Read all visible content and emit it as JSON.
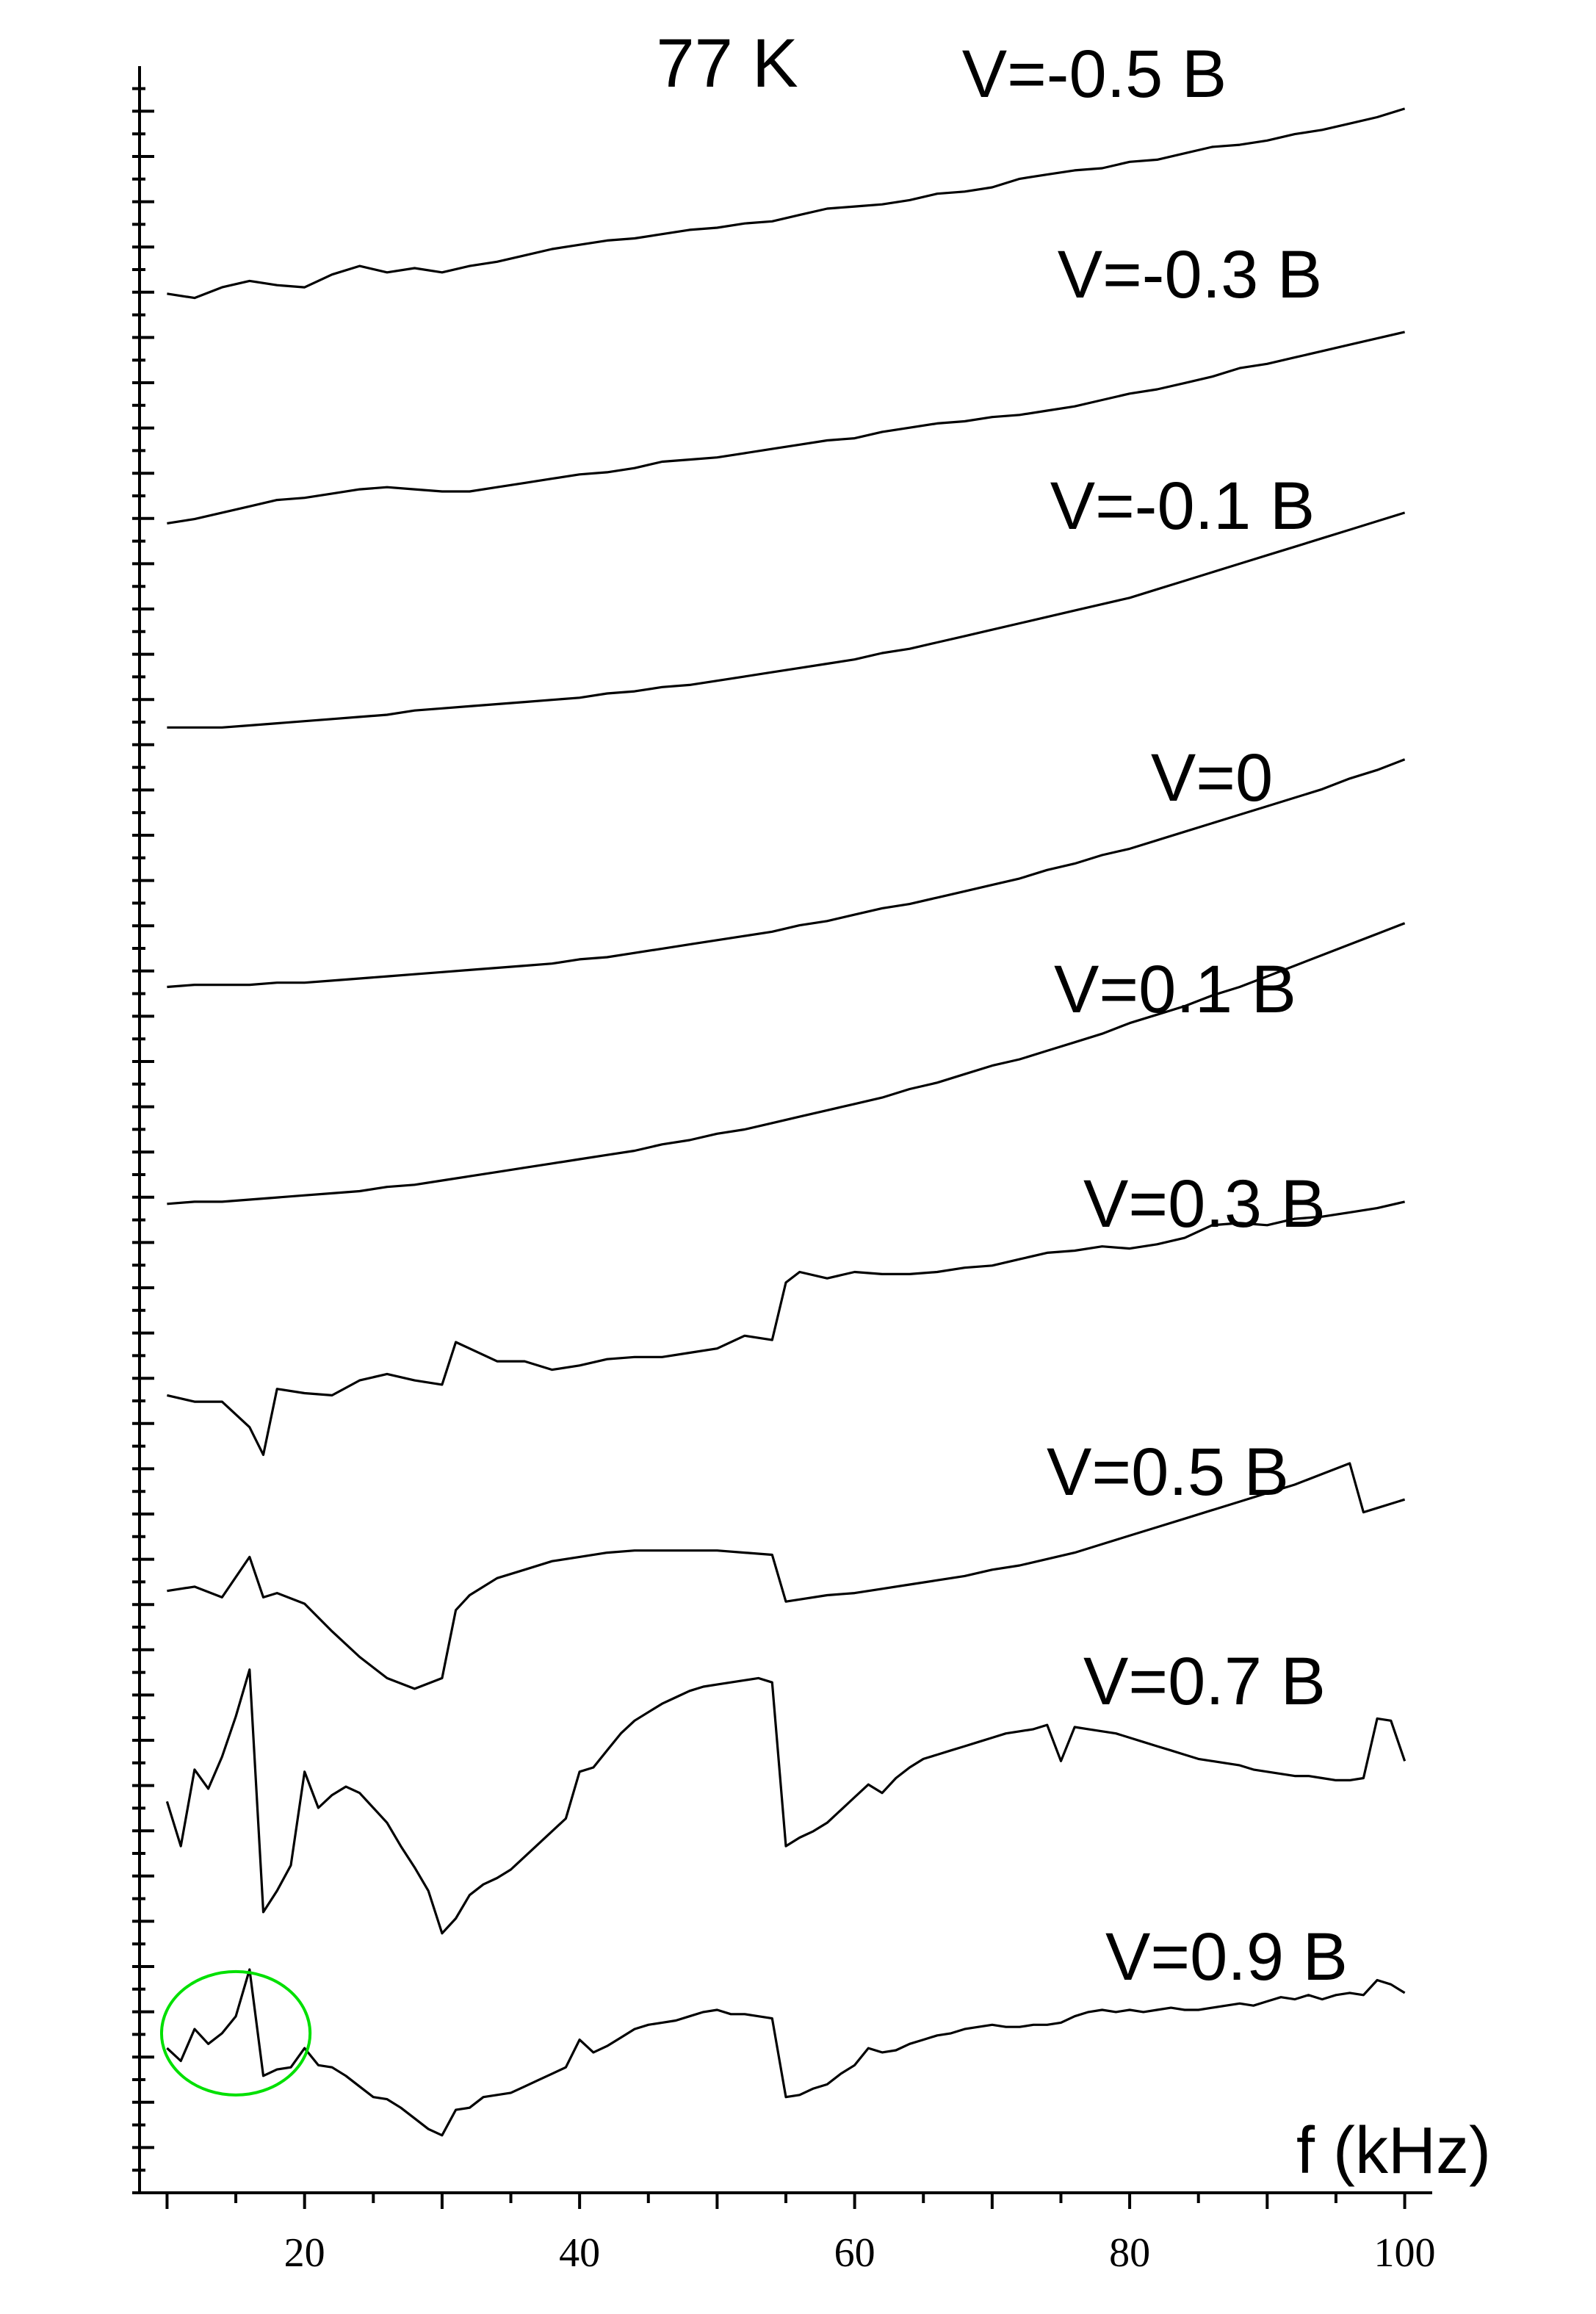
{
  "chart_data": {
    "type": "line",
    "title": "77 K",
    "xlabel": "f (kHz)",
    "ylabel": "",
    "xlim": [
      8,
      102
    ],
    "ylim": [
      0,
      100
    ],
    "x_ticks": [
      20,
      40,
      60,
      80,
      100
    ],
    "y_tick_labels": false,
    "grid": false,
    "legend": "inline labels at right end of each curve",
    "colors": {
      "curve": "#000000",
      "highlight": "#00e000"
    },
    "highlight": {
      "shape": "ellipse",
      "cx": 15,
      "cy": 7.5,
      "rx": 5.4,
      "ry": 2.9
    },
    "series": [
      {
        "name": "V=-0.5 B",
        "x": [
          10,
          12,
          14,
          16,
          18,
          20,
          22,
          24,
          26,
          28,
          30,
          32,
          34,
          36,
          38,
          40,
          42,
          44,
          46,
          48,
          50,
          52,
          54,
          56,
          58,
          60,
          62,
          64,
          66,
          68,
          70,
          72,
          74,
          76,
          78,
          80,
          82,
          84,
          86,
          88,
          90,
          92,
          94,
          96,
          98,
          100
        ],
        "y": [
          89.3,
          89.1,
          89.6,
          89.9,
          89.7,
          89.6,
          90.2,
          90.6,
          90.3,
          90.5,
          90.3,
          90.6,
          90.8,
          91.1,
          91.4,
          91.6,
          91.8,
          91.9,
          92.1,
          92.3,
          92.4,
          92.6,
          92.7,
          93.0,
          93.3,
          93.4,
          93.5,
          93.7,
          94.0,
          94.1,
          94.3,
          94.7,
          94.9,
          95.1,
          95.2,
          95.5,
          95.6,
          95.9,
          96.2,
          96.3,
          96.5,
          96.8,
          97.0,
          97.3,
          97.6,
          98.0
        ]
      },
      {
        "name": "V=-0.3 B",
        "x": [
          10,
          12,
          14,
          16,
          18,
          20,
          22,
          24,
          26,
          28,
          30,
          32,
          34,
          36,
          38,
          40,
          42,
          44,
          46,
          48,
          50,
          52,
          54,
          56,
          58,
          60,
          62,
          64,
          66,
          68,
          70,
          72,
          74,
          76,
          78,
          80,
          82,
          84,
          86,
          88,
          90,
          92,
          94,
          96,
          98,
          100
        ],
        "y": [
          78.5,
          78.7,
          79.0,
          79.3,
          79.6,
          79.7,
          79.9,
          80.1,
          80.2,
          80.1,
          80.0,
          80.0,
          80.2,
          80.4,
          80.6,
          80.8,
          80.9,
          81.1,
          81.4,
          81.5,
          81.6,
          81.8,
          82.0,
          82.2,
          82.4,
          82.5,
          82.8,
          83.0,
          83.2,
          83.3,
          83.5,
          83.6,
          83.8,
          84.0,
          84.3,
          84.6,
          84.8,
          85.1,
          85.4,
          85.8,
          86.0,
          86.3,
          86.6,
          86.9,
          87.2,
          87.5
        ]
      },
      {
        "name": "V=-0.1 B",
        "x": [
          10,
          12,
          14,
          16,
          18,
          20,
          22,
          24,
          26,
          28,
          30,
          32,
          34,
          36,
          38,
          40,
          42,
          44,
          46,
          48,
          50,
          52,
          54,
          56,
          58,
          60,
          62,
          64,
          66,
          68,
          70,
          72,
          74,
          76,
          78,
          80,
          82,
          84,
          86,
          88,
          90,
          92,
          94,
          96,
          98,
          100
        ],
        "y": [
          68.9,
          68.9,
          68.9,
          69.0,
          69.1,
          69.2,
          69.3,
          69.4,
          69.5,
          69.7,
          69.8,
          69.9,
          70.0,
          70.1,
          70.2,
          70.3,
          70.5,
          70.6,
          70.8,
          70.9,
          71.1,
          71.3,
          71.5,
          71.7,
          71.9,
          72.1,
          72.4,
          72.6,
          72.9,
          73.2,
          73.5,
          73.8,
          74.1,
          74.4,
          74.7,
          75.0,
          75.4,
          75.8,
          76.2,
          76.6,
          77.0,
          77.4,
          77.8,
          78.2,
          78.6,
          79.0
        ]
      },
      {
        "name": "V=0",
        "x": [
          10,
          12,
          14,
          16,
          18,
          20,
          22,
          24,
          26,
          28,
          30,
          32,
          34,
          36,
          38,
          40,
          42,
          44,
          46,
          48,
          50,
          52,
          54,
          56,
          58,
          60,
          62,
          64,
          66,
          68,
          70,
          72,
          74,
          76,
          78,
          80,
          82,
          84,
          86,
          88,
          90,
          92,
          94,
          96,
          98,
          100
        ],
        "y": [
          56.7,
          56.8,
          56.8,
          56.8,
          56.9,
          56.9,
          57.0,
          57.1,
          57.2,
          57.3,
          57.4,
          57.5,
          57.6,
          57.7,
          57.8,
          58.0,
          58.1,
          58.3,
          58.5,
          58.7,
          58.9,
          59.1,
          59.3,
          59.6,
          59.8,
          60.1,
          60.4,
          60.6,
          60.9,
          61.2,
          61.5,
          61.8,
          62.2,
          62.5,
          62.9,
          63.2,
          63.6,
          64.0,
          64.4,
          64.8,
          65.2,
          65.6,
          66.0,
          66.5,
          66.9,
          67.4
        ]
      },
      {
        "name": "V=0.1 B",
        "x": [
          10,
          12,
          14,
          16,
          18,
          20,
          22,
          24,
          26,
          28,
          30,
          32,
          34,
          36,
          38,
          40,
          42,
          44,
          46,
          48,
          50,
          52,
          54,
          56,
          58,
          60,
          62,
          64,
          66,
          68,
          70,
          72,
          74,
          76,
          78,
          80,
          82,
          84,
          86,
          88,
          90,
          92,
          94,
          96,
          98,
          100
        ],
        "y": [
          46.5,
          46.6,
          46.6,
          46.7,
          46.8,
          46.9,
          47.0,
          47.1,
          47.3,
          47.4,
          47.6,
          47.8,
          48.0,
          48.2,
          48.4,
          48.6,
          48.8,
          49.0,
          49.3,
          49.5,
          49.8,
          50.0,
          50.3,
          50.6,
          50.9,
          51.2,
          51.5,
          51.9,
          52.2,
          52.6,
          53.0,
          53.3,
          53.7,
          54.1,
          54.5,
          55.0,
          55.4,
          55.8,
          56.3,
          56.7,
          57.2,
          57.7,
          58.2,
          58.7,
          59.2,
          59.7
        ]
      },
      {
        "name": "V=0.3 B",
        "x": [
          10,
          12,
          14,
          16,
          17,
          18,
          20,
          22,
          24,
          26,
          28,
          30,
          31,
          32,
          34,
          36,
          38,
          40,
          42,
          44,
          46,
          48,
          50,
          52,
          54,
          55,
          56,
          58,
          60,
          62,
          64,
          66,
          68,
          70,
          72,
          74,
          76,
          78,
          80,
          82,
          84,
          86,
          88,
          90,
          92,
          94,
          96,
          98,
          100
        ],
        "y": [
          37.5,
          37.2,
          37.2,
          36.0,
          34.7,
          37.8,
          37.6,
          37.5,
          38.2,
          38.5,
          38.2,
          38.0,
          40.0,
          39.7,
          39.1,
          39.1,
          38.7,
          38.9,
          39.2,
          39.3,
          39.3,
          39.5,
          39.7,
          40.3,
          40.1,
          42.8,
          43.3,
          43.0,
          43.3,
          43.2,
          43.2,
          43.3,
          43.5,
          43.6,
          43.9,
          44.2,
          44.3,
          44.5,
          44.4,
          44.6,
          44.9,
          45.5,
          45.6,
          45.5,
          45.8,
          45.9,
          46.1,
          46.3,
          46.6
        ]
      },
      {
        "name": "V=0.5 B",
        "x": [
          10,
          12,
          14,
          16,
          17,
          18,
          20,
          22,
          24,
          26,
          28,
          30,
          31,
          32,
          34,
          36,
          38,
          40,
          42,
          44,
          46,
          48,
          50,
          52,
          54,
          55,
          56,
          58,
          60,
          62,
          64,
          66,
          68,
          70,
          72,
          74,
          76,
          78,
          80,
          82,
          84,
          86,
          88,
          90,
          92,
          94,
          96,
          97,
          98,
          100
        ],
        "y": [
          28.3,
          28.5,
          28.0,
          29.9,
          28.0,
          28.2,
          27.7,
          26.4,
          25.2,
          24.2,
          23.7,
          24.2,
          27.4,
          28.1,
          28.9,
          29.3,
          29.7,
          29.9,
          30.1,
          30.2,
          30.2,
          30.2,
          30.2,
          30.1,
          30.0,
          27.8,
          27.9,
          28.1,
          28.2,
          28.4,
          28.6,
          28.8,
          29.0,
          29.3,
          29.5,
          29.8,
          30.1,
          30.5,
          30.9,
          31.3,
          31.7,
          32.1,
          32.5,
          32.9,
          33.3,
          33.8,
          34.3,
          32.0,
          32.2,
          32.6
        ]
      },
      {
        "name": "V=0.7 B",
        "x": [
          10,
          11,
          12,
          13,
          14,
          15,
          16,
          17,
          18,
          19,
          20,
          21,
          22,
          23,
          24,
          25,
          26,
          27,
          28,
          29,
          30,
          31,
          32,
          33,
          34,
          35,
          36,
          37,
          38,
          39,
          40,
          41,
          42,
          43,
          44,
          45,
          46,
          47,
          48,
          49,
          50,
          51,
          52,
          53,
          54,
          55,
          56,
          57,
          58,
          59,
          60,
          61,
          62,
          63,
          64,
          65,
          66,
          67,
          68,
          69,
          70,
          71,
          72,
          73,
          74,
          75,
          76,
          77,
          78,
          79,
          80,
          81,
          82,
          83,
          84,
          85,
          86,
          87,
          88,
          89,
          90,
          91,
          92,
          93,
          94,
          95,
          96,
          97,
          98,
          99,
          100
        ],
        "y": [
          18.4,
          16.3,
          19.9,
          19.0,
          20.5,
          22.4,
          24.6,
          13.2,
          14.2,
          15.4,
          19.8,
          18.1,
          18.7,
          19.1,
          18.8,
          18.1,
          17.4,
          16.3,
          15.3,
          14.2,
          12.2,
          12.9,
          14.0,
          14.5,
          14.8,
          15.2,
          15.8,
          16.4,
          17.0,
          17.6,
          19.8,
          20.0,
          20.8,
          21.6,
          22.2,
          22.6,
          23.0,
          23.3,
          23.6,
          23.8,
          23.9,
          24.0,
          24.1,
          24.2,
          24.0,
          16.3,
          16.7,
          17.0,
          17.4,
          18.0,
          18.6,
          19.2,
          18.8,
          19.5,
          20.0,
          20.4,
          20.6,
          20.8,
          21.0,
          21.2,
          21.4,
          21.6,
          21.7,
          21.8,
          22.0,
          20.3,
          21.9,
          21.8,
          21.7,
          21.6,
          21.4,
          21.2,
          21.0,
          20.8,
          20.6,
          20.4,
          20.3,
          20.2,
          20.1,
          19.9,
          19.8,
          19.7,
          19.6,
          19.6,
          19.5,
          19.4,
          19.4,
          19.5,
          22.3,
          22.2,
          20.3
        ]
      },
      {
        "name": "V=0.9 B",
        "x": [
          10,
          11,
          12,
          13,
          14,
          15,
          16,
          17,
          18,
          19,
          20,
          21,
          22,
          23,
          24,
          25,
          26,
          27,
          28,
          29,
          30,
          31,
          32,
          33,
          34,
          35,
          36,
          37,
          38,
          39,
          40,
          41,
          42,
          43,
          44,
          45,
          46,
          47,
          48,
          49,
          50,
          51,
          52,
          53,
          54,
          55,
          56,
          57,
          58,
          59,
          60,
          61,
          62,
          63,
          64,
          65,
          66,
          67,
          68,
          69,
          70,
          71,
          72,
          73,
          74,
          75,
          76,
          77,
          78,
          79,
          80,
          81,
          82,
          83,
          84,
          85,
          86,
          87,
          88,
          89,
          90,
          91,
          92,
          93,
          94,
          95,
          96,
          97,
          98,
          99,
          100
        ],
        "y": [
          6.8,
          6.2,
          7.7,
          7.0,
          7.5,
          8.3,
          10.5,
          5.5,
          5.8,
          5.9,
          6.8,
          6.0,
          5.9,
          5.5,
          5.0,
          4.5,
          4.4,
          4.0,
          3.5,
          3.0,
          2.7,
          3.9,
          4.0,
          4.5,
          4.6,
          4.7,
          5.0,
          5.3,
          5.6,
          5.9,
          7.2,
          6.6,
          6.9,
          7.3,
          7.7,
          7.9,
          8.0,
          8.1,
          8.3,
          8.5,
          8.6,
          8.4,
          8.4,
          8.3,
          8.2,
          4.5,
          4.6,
          4.9,
          5.1,
          5.6,
          6.0,
          6.8,
          6.6,
          6.7,
          7.0,
          7.2,
          7.4,
          7.5,
          7.7,
          7.8,
          7.9,
          7.8,
          7.8,
          7.9,
          7.9,
          8.0,
          8.3,
          8.5,
          8.6,
          8.5,
          8.6,
          8.5,
          8.6,
          8.7,
          8.6,
          8.6,
          8.7,
          8.8,
          8.9,
          8.8,
          9.0,
          9.2,
          9.1,
          9.3,
          9.1,
          9.3,
          9.4,
          9.3,
          10.0,
          9.8,
          9.4
        ]
      }
    ]
  }
}
